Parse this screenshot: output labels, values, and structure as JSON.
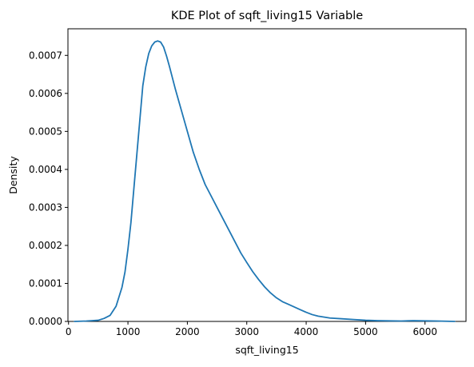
{
  "chart_data": {
    "type": "line",
    "title": "KDE Plot of sqft_living15 Variable",
    "xlabel": "sqft_living15",
    "ylabel": "Density",
    "xlim": [
      -10,
      6690
    ],
    "ylim": [
      0,
      0.00077
    ],
    "xticks": [
      0,
      1000,
      2000,
      3000,
      4000,
      5000,
      6000
    ],
    "xtick_labels": [
      "0",
      "1000",
      "2000",
      "3000",
      "4000",
      "5000",
      "6000"
    ],
    "yticks": [
      0,
      0.0001,
      0.0002,
      0.0003,
      0.0004,
      0.0005,
      0.0006,
      0.0007
    ],
    "ytick_labels": [
      "0.0000",
      "0.0001",
      "0.0002",
      "0.0003",
      "0.0004",
      "0.0005",
      "0.0006",
      "0.0007"
    ],
    "grid": false,
    "legend": "none",
    "line_color": "#1f77b4",
    "series": [
      {
        "x": [
          100,
          300,
          500,
          600,
          700,
          800,
          900,
          950,
          1000,
          1050,
          1100,
          1150,
          1200,
          1250,
          1300,
          1350,
          1400,
          1450,
          1500,
          1550,
          1600,
          1650,
          1700,
          1750,
          1800,
          1900,
          2000,
          2100,
          2200,
          2300,
          2400,
          2500,
          2600,
          2700,
          2800,
          2900,
          3000,
          3100,
          3200,
          3300,
          3400,
          3500,
          3600,
          3700,
          3800,
          3900,
          4000,
          4100,
          4200,
          4400,
          4600,
          4800,
          5000,
          5200,
          5400,
          5600,
          5800,
          6000,
          6200,
          6500
        ],
        "y": [
          0,
          1e-06,
          3e-06,
          8e-06,
          1.6e-05,
          4e-05,
          9e-05,
          0.00013,
          0.00019,
          0.00026,
          0.00035,
          0.00044,
          0.00053,
          0.00062,
          0.00067,
          0.000705,
          0.000725,
          0.000735,
          0.000738,
          0.000735,
          0.000722,
          0.000698,
          0.00067,
          0.00064,
          0.00061,
          0.000555,
          0.0005,
          0.000445,
          0.0004,
          0.00036,
          0.00033,
          0.0003,
          0.00027,
          0.00024,
          0.00021,
          0.00018,
          0.000155,
          0.000131,
          0.00011,
          9.1e-05,
          7.5e-05,
          6.2e-05,
          5.2e-05,
          4.5e-05,
          3.8e-05,
          3.1e-05,
          2.4e-05,
          1.8e-05,
          1.4e-05,
          9e-06,
          7e-06,
          5e-06,
          3e-06,
          2e-06,
          1.5e-06,
          1e-06,
          2e-06,
          1.5e-06,
          1e-06,
          0
        ]
      }
    ]
  }
}
